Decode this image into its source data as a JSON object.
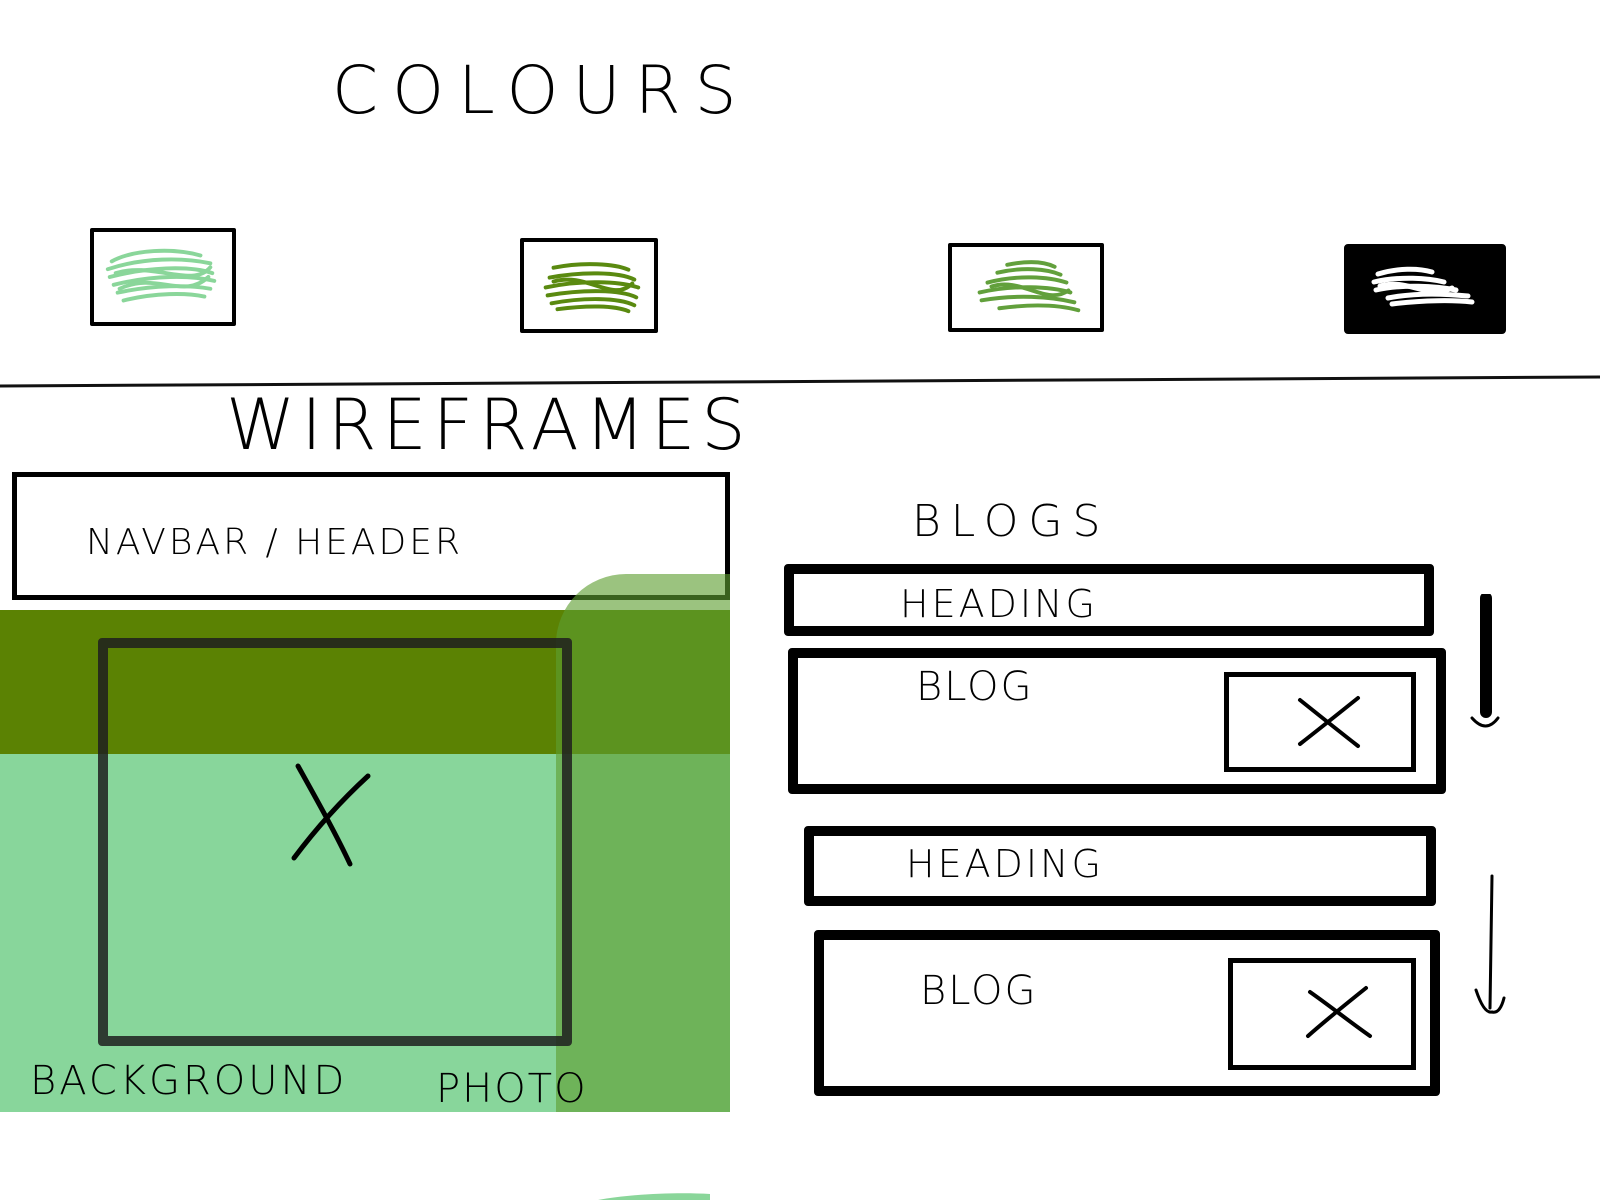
{
  "colours": {
    "title": "COLOURS",
    "swatches": [
      {
        "color": "#8ad69a"
      },
      {
        "color": "#5a8a10"
      },
      {
        "color": "#62a03c"
      },
      {
        "color": "#000000",
        "fill": "#ffffff"
      }
    ]
  },
  "wireframes": {
    "title": "WIREFRAMES",
    "left": {
      "navbar_label": "NAVBAR / HEADER",
      "background_label": "BACKGROUND",
      "photo_label": "PHOTO",
      "colors": {
        "dark": "#5b8203",
        "light": "#88d69b",
        "overlay": "#5e9e30"
      }
    },
    "right": {
      "title": "BLOGS",
      "sections": [
        {
          "heading": "HEADING",
          "blog": "BLOG"
        },
        {
          "heading": "HEADING",
          "blog": "BLOG"
        }
      ]
    }
  }
}
